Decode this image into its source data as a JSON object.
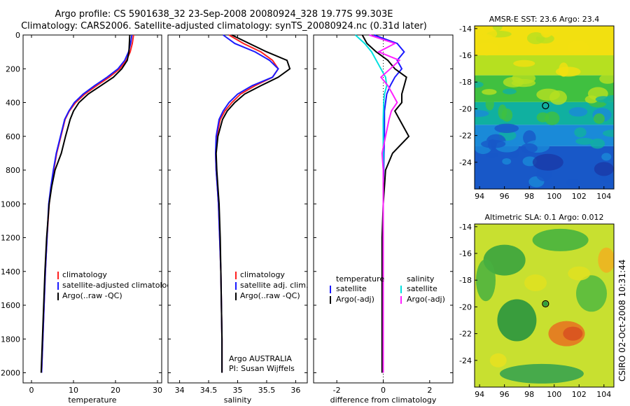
{
  "header": {
    "title_line1": "Argo profile: CS 5901638_32 23-Sep-2008 20080924_328 19.77S 99.303E",
    "title_line2": "Climatology: CARS2006. Satellite-adjusted climatology: synTS_20080924.nc (0.31d later)"
  },
  "credit": "CSIRO 02-Oct-2008 10:31:44",
  "colors": {
    "climatology": "#ff2020",
    "satellite": "#1a1aff",
    "argo": "#000000",
    "satellite_sal": "#00e0e0",
    "argo_sal": "#ff20ff"
  },
  "chart_data": [
    {
      "id": "temperature",
      "type": "line",
      "xlabel": "temperature",
      "ylabel": "",
      "xlim": [
        -2,
        31
      ],
      "ylim": [
        0,
        2060
      ],
      "y_inverted": true,
      "xticks": [
        0,
        10,
        20,
        30
      ],
      "yticks": [
        0,
        200,
        400,
        600,
        800,
        1000,
        1200,
        1400,
        1600,
        1800,
        2000
      ],
      "legend": [
        "climatology",
        "satellite-adjusted climatology",
        "Argo(..raw -QC)"
      ],
      "legend_placement": "lower-middle",
      "series": [
        {
          "name": "climatology",
          "color": "#ff2020",
          "x": [
            24.3,
            24.0,
            23.5,
            22.6,
            21.0,
            18.5,
            15.5,
            12.7,
            10.5,
            9.0,
            8.0,
            7.0,
            6.0,
            5.3,
            4.7,
            4.2,
            3.7,
            3.3,
            3.0,
            2.7,
            2.4
          ],
          "y": [
            0,
            50,
            100,
            150,
            200,
            250,
            300,
            350,
            400,
            450,
            500,
            600,
            700,
            800,
            900,
            1000,
            1200,
            1400,
            1600,
            1800,
            2000
          ]
        },
        {
          "name": "satellite-adjusted climatology",
          "color": "#1a1aff",
          "x": [
            23.9,
            23.6,
            23.1,
            22.2,
            20.6,
            18.0,
            15.0,
            12.3,
            10.2,
            8.9,
            7.9,
            6.9,
            5.9,
            5.2,
            4.6,
            4.1,
            3.7,
            3.3,
            3.0,
            2.7,
            2.4
          ],
          "y": [
            0,
            50,
            100,
            150,
            200,
            250,
            300,
            350,
            400,
            450,
            500,
            600,
            700,
            800,
            900,
            1000,
            1200,
            1400,
            1600,
            1800,
            2000
          ]
        },
        {
          "name": "Argo(..raw -QC)",
          "color": "#000000",
          "x": [
            23.4,
            23.3,
            23.2,
            22.8,
            21.5,
            19.5,
            16.5,
            13.5,
            11.3,
            10.0,
            9.2,
            8.1,
            7.1,
            5.6,
            4.8,
            4.2,
            3.6,
            3.2,
            2.9,
            2.6,
            2.3
          ],
          "y": [
            0,
            50,
            100,
            150,
            200,
            250,
            300,
            350,
            400,
            450,
            500,
            600,
            700,
            800,
            900,
            1000,
            1200,
            1400,
            1600,
            1800,
            2000
          ]
        }
      ]
    },
    {
      "id": "salinity",
      "type": "line",
      "xlabel": "salinity",
      "ylabel": "",
      "xlim": [
        33.8,
        36.2
      ],
      "ylim": [
        0,
        2060
      ],
      "y_inverted": true,
      "xticks": [
        34,
        34.5,
        35,
        35.5,
        36
      ],
      "xtick_labels": [
        "34",
        "34.5",
        "35",
        "35.5",
        "36"
      ],
      "legend": [
        "climatology",
        "satellite adj. clim.",
        "Argo(..raw -QC)"
      ],
      "legend_placement": "lower-right",
      "annotation": [
        "Argo AUSTRALIA",
        "PI: Susan Wijffels"
      ],
      "series": [
        {
          "name": "climatology",
          "color": "#ff2020",
          "x": [
            34.85,
            35.1,
            35.4,
            35.6,
            35.7,
            35.6,
            35.3,
            35.05,
            34.9,
            34.78,
            34.7,
            34.64,
            34.62,
            34.63,
            34.65,
            34.67,
            34.69,
            34.71,
            34.72,
            34.73,
            34.73
          ],
          "y": [
            0,
            50,
            100,
            150,
            200,
            250,
            300,
            350,
            400,
            450,
            500,
            600,
            700,
            800,
            900,
            1000,
            1200,
            1400,
            1600,
            1800,
            2000
          ]
        },
        {
          "name": "satellite adj. clim.",
          "color": "#1a1aff",
          "x": [
            34.75,
            34.95,
            35.3,
            35.55,
            35.7,
            35.6,
            35.25,
            35.0,
            34.85,
            34.75,
            34.68,
            34.63,
            34.62,
            34.63,
            34.65,
            34.67,
            34.69,
            34.71,
            34.72,
            34.73,
            34.73
          ],
          "y": [
            0,
            50,
            100,
            150,
            200,
            250,
            300,
            350,
            400,
            450,
            500,
            600,
            700,
            800,
            900,
            1000,
            1200,
            1400,
            1600,
            1800,
            2000
          ]
        },
        {
          "name": "Argo(..raw -QC)",
          "color": "#000000",
          "x": [
            34.9,
            35.2,
            35.5,
            35.85,
            35.9,
            35.7,
            35.4,
            35.12,
            34.95,
            34.82,
            34.74,
            34.66,
            34.63,
            34.64,
            34.66,
            34.68,
            34.7,
            34.71,
            34.72,
            34.73,
            34.73
          ],
          "y": [
            0,
            50,
            100,
            150,
            200,
            250,
            300,
            350,
            400,
            450,
            500,
            600,
            700,
            800,
            900,
            1000,
            1200,
            1400,
            1600,
            1800,
            2000
          ]
        }
      ]
    },
    {
      "id": "difference",
      "type": "line",
      "xlabel": "difference from climatology",
      "ylabel": "",
      "xlim": [
        -3,
        3
      ],
      "ylim": [
        0,
        2060
      ],
      "y_inverted": true,
      "xticks": [
        -2,
        0,
        2
      ],
      "legend_columns": [
        {
          "heading": "temperature",
          "entries": [
            "satellite",
            "Argo(-adj)"
          ]
        },
        {
          "heading": "salinity",
          "entries": [
            "satellite",
            "Argo(-adj)"
          ]
        }
      ],
      "legend_placement": "lower-middle",
      "series": [
        {
          "name": "temperature satellite",
          "color": "#1a1aff",
          "x": [
            -0.4,
            0.6,
            0.9,
            0.6,
            0.8,
            0.5,
            0.3,
            0.15,
            0.1,
            0.05,
            0.05,
            0.05,
            0.03,
            0.02,
            0.0,
            0.0,
            0.0,
            0.0,
            0.0,
            0.0,
            0.0
          ],
          "y": [
            0,
            50,
            100,
            150,
            200,
            250,
            300,
            350,
            400,
            450,
            500,
            600,
            700,
            800,
            900,
            1000,
            1200,
            1400,
            1600,
            1800,
            2000
          ]
        },
        {
          "name": "temperature Argo(-adj)",
          "color": "#000000",
          "x": [
            -0.9,
            -0.7,
            -0.3,
            0.2,
            0.5,
            1.0,
            0.9,
            0.8,
            0.8,
            0.5,
            0.7,
            1.1,
            0.4,
            0.1,
            0.05,
            0.0,
            -0.05,
            -0.05,
            -0.05,
            -0.05,
            -0.05
          ],
          "y": [
            0,
            50,
            100,
            150,
            200,
            250,
            300,
            350,
            400,
            450,
            500,
            600,
            700,
            800,
            900,
            1000,
            1200,
            1400,
            1600,
            1800,
            2000
          ]
        },
        {
          "name": "salinity satellite",
          "color": "#00e0e0",
          "x": [
            -1.2,
            -0.8,
            -0.5,
            -0.3,
            -0.1,
            0.1,
            0.15,
            0.05,
            0.02,
            0.01,
            0.0,
            0.0,
            0.0,
            0.0,
            0.0,
            0.0,
            0.0,
            0.0,
            0.0,
            0.0,
            0.0
          ],
          "y": [
            0,
            50,
            100,
            150,
            200,
            250,
            300,
            350,
            400,
            450,
            500,
            600,
            700,
            800,
            900,
            1000,
            1200,
            1400,
            1600,
            1800,
            2000
          ]
        },
        {
          "name": "salinity Argo(-adj)",
          "color": "#ff20ff",
          "x": [
            -0.6,
            0.5,
            -0.2,
            0.7,
            0.3,
            -0.1,
            0.2,
            0.4,
            0.6,
            0.35,
            0.25,
            0.1,
            -0.05,
            0.0,
            0.0,
            0.0,
            0.0,
            0.0,
            0.0,
            0.0,
            0.0
          ],
          "y": [
            0,
            50,
            100,
            150,
            200,
            250,
            300,
            350,
            400,
            450,
            500,
            600,
            700,
            800,
            900,
            1000,
            1200,
            1400,
            1600,
            1800,
            2000
          ]
        }
      ]
    },
    {
      "id": "sst-map",
      "type": "heatmap",
      "title": "AMSR-E SST: 23.6 Argo: 23.4",
      "xlim": [
        93.6,
        104.8
      ],
      "ylim": [
        -26,
        -13.8
      ],
      "xticks": [
        94,
        96,
        98,
        100,
        102,
        104
      ],
      "yticks": [
        -14,
        -16,
        -18,
        -20,
        -22,
        -24
      ],
      "marker": {
        "lon": 99.303,
        "lat": -19.77
      },
      "bands": [
        {
          "lat_top": -13.8,
          "lat_bottom": -16,
          "color": "#f2e010"
        },
        {
          "lat_top": -16,
          "lat_bottom": -17.5,
          "color": "#b6e020"
        },
        {
          "lat_top": -17.5,
          "lat_bottom": -19.5,
          "color": "#40c040"
        },
        {
          "lat_top": -19.5,
          "lat_bottom": -21.2,
          "color": "#10b0a0"
        },
        {
          "lat_top": -21.2,
          "lat_bottom": -22.8,
          "color": "#1a8ad8"
        },
        {
          "lat_top": -22.8,
          "lat_bottom": -26,
          "color": "#1858c8"
        }
      ]
    },
    {
      "id": "sla-map",
      "type": "heatmap",
      "title": "Altimetric SLA: 0.1 Argo: 0.012",
      "xlim": [
        93.6,
        104.8
      ],
      "ylim": [
        -26,
        -13.8
      ],
      "xticks": [
        94,
        96,
        98,
        100,
        102,
        104
      ],
      "yticks": [
        -14,
        -16,
        -18,
        -20,
        -22,
        -24
      ],
      "marker": {
        "lon": 99.303,
        "lat": -19.77
      },
      "background_color": "#c8e030"
    }
  ]
}
